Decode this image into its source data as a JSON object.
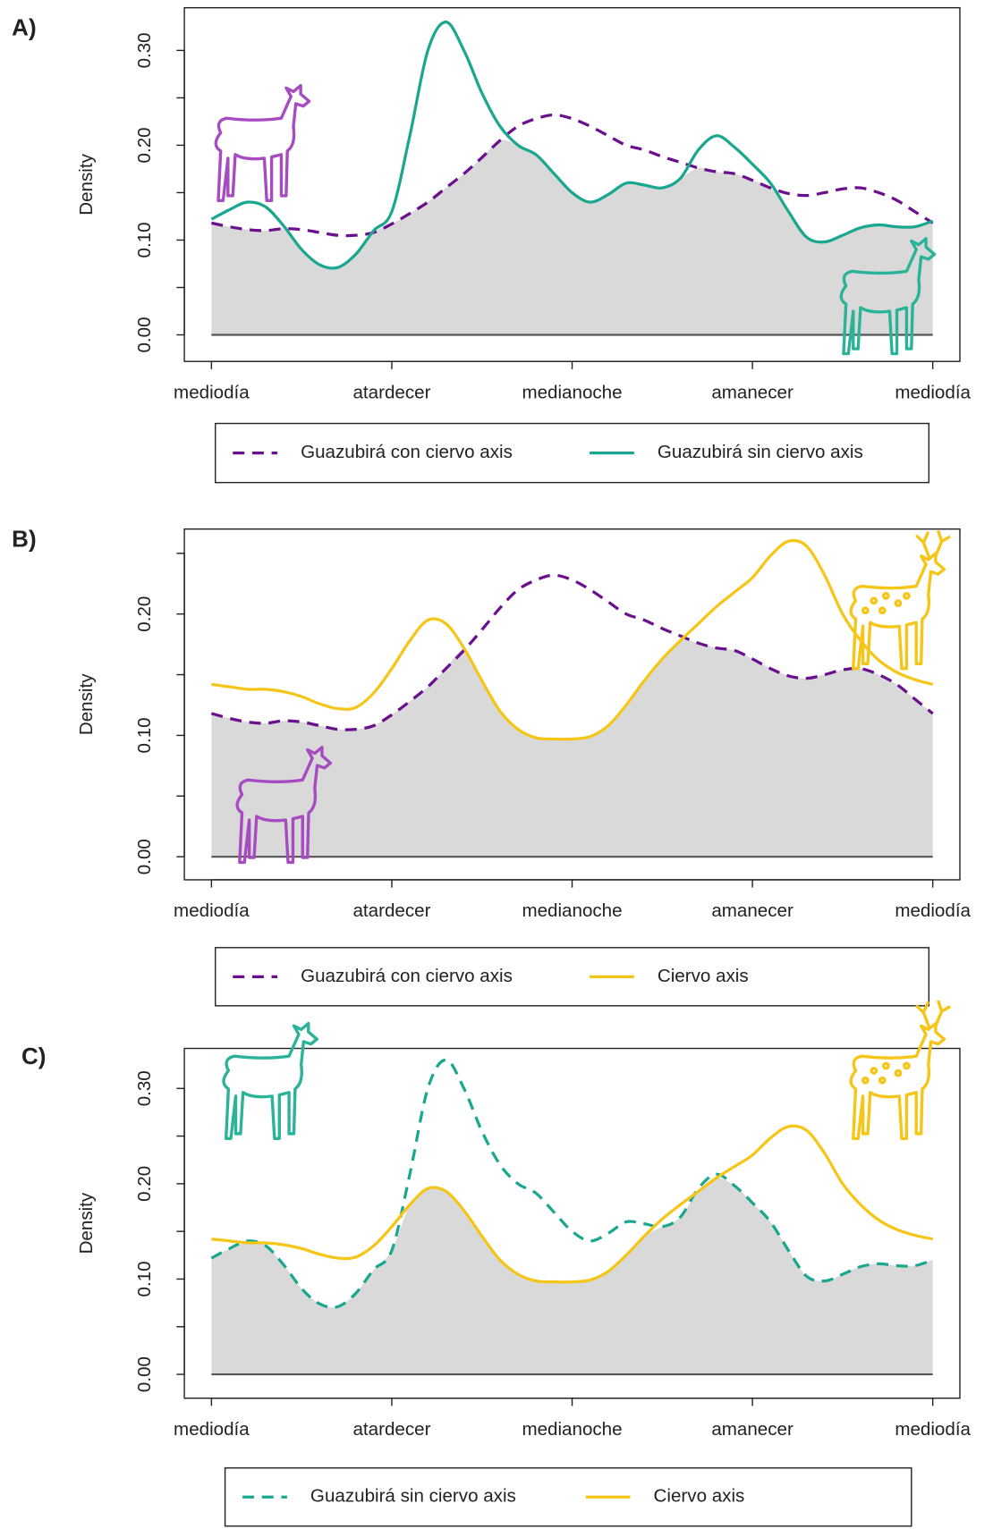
{
  "chart_data": [
    {
      "type": "line",
      "label": "A)",
      "ylabel": "Density",
      "x": [
        0,
        0.025,
        0.05,
        0.075,
        0.1,
        0.125,
        0.15,
        0.175,
        0.2,
        0.225,
        0.25,
        0.275,
        0.3,
        0.325,
        0.35,
        0.375,
        0.4,
        0.425,
        0.45,
        0.475,
        0.5,
        0.525,
        0.55,
        0.575,
        0.6,
        0.625,
        0.65,
        0.675,
        0.7,
        0.725,
        0.75,
        0.775,
        0.8,
        0.825,
        0.85,
        0.875,
        0.9,
        0.925,
        0.95,
        0.975,
        1
      ],
      "xlim": [
        -0.0376,
        1.0376
      ],
      "xticks": [
        {
          "value": 0,
          "label": "mediodía"
        },
        {
          "value": 0.25,
          "label": "atardecer"
        },
        {
          "value": 0.5,
          "label": "medianoche"
        },
        {
          "value": 0.75,
          "label": "amanecer"
        },
        {
          "value": 1,
          "label": "mediodía"
        }
      ],
      "ylim": [
        -0.028,
        0.345
      ],
      "yticks": [
        {
          "value": 0,
          "label": "0.00"
        },
        {
          "value": 0.1,
          "label": "0.10"
        },
        {
          "value": 0.2,
          "label": "0.20"
        },
        {
          "value": 0.3,
          "label": "0.30"
        }
      ],
      "yminorticks": [
        0.05,
        0.15,
        0.25
      ],
      "series": [
        {
          "name": "Guazubirá con ciervo axis",
          "color": "#6a0f8e",
          "dashed": true,
          "values": [
            0.118,
            0.114,
            0.111,
            0.11,
            0.112,
            0.111,
            0.108,
            0.105,
            0.105,
            0.108,
            0.117,
            0.128,
            0.14,
            0.155,
            0.17,
            0.187,
            0.205,
            0.22,
            0.228,
            0.232,
            0.228,
            0.22,
            0.21,
            0.2,
            0.195,
            0.188,
            0.182,
            0.176,
            0.172,
            0.17,
            0.163,
            0.155,
            0.149,
            0.147,
            0.15,
            0.154,
            0.155,
            0.15,
            0.142,
            0.13,
            0.118
          ]
        },
        {
          "name": "Guazubirá sin ciervo axis",
          "color": "#1aa78f",
          "dashed": false,
          "values": [
            0.122,
            0.132,
            0.14,
            0.135,
            0.115,
            0.09,
            0.074,
            0.071,
            0.085,
            0.11,
            0.13,
            0.21,
            0.3,
            0.33,
            0.3,
            0.255,
            0.22,
            0.2,
            0.19,
            0.17,
            0.15,
            0.14,
            0.148,
            0.16,
            0.158,
            0.155,
            0.165,
            0.195,
            0.21,
            0.198,
            0.18,
            0.16,
            0.13,
            0.103,
            0.098,
            0.105,
            0.113,
            0.116,
            0.114,
            0.114,
            0.12
          ]
        }
      ]
    },
    {
      "type": "line",
      "label": "B)",
      "ylabel": "Density",
      "x": [
        0,
        0.025,
        0.05,
        0.075,
        0.1,
        0.125,
        0.15,
        0.175,
        0.2,
        0.225,
        0.25,
        0.275,
        0.3,
        0.325,
        0.35,
        0.375,
        0.4,
        0.425,
        0.45,
        0.475,
        0.5,
        0.525,
        0.55,
        0.575,
        0.6,
        0.625,
        0.65,
        0.675,
        0.7,
        0.725,
        0.75,
        0.775,
        0.8,
        0.825,
        0.85,
        0.875,
        0.9,
        0.925,
        0.95,
        0.975,
        1
      ],
      "xlim": [
        -0.0376,
        1.0376
      ],
      "xticks": [
        {
          "value": 0,
          "label": "mediodía"
        },
        {
          "value": 0.25,
          "label": "atardecer"
        },
        {
          "value": 0.5,
          "label": "medianoche"
        },
        {
          "value": 0.75,
          "label": "amanecer"
        },
        {
          "value": 1,
          "label": "mediodía"
        }
      ],
      "ylim": [
        -0.019,
        0.27
      ],
      "yticks": [
        {
          "value": 0,
          "label": "0.00"
        },
        {
          "value": 0.1,
          "label": "0.10"
        },
        {
          "value": 0.2,
          "label": "0.20"
        }
      ],
      "yminorticks": [
        0.05,
        0.15,
        0.25
      ],
      "series": [
        {
          "name": "Guazubirá con ciervo axis",
          "color": "#6a0f8e",
          "dashed": true,
          "values": [
            0.118,
            0.114,
            0.111,
            0.11,
            0.112,
            0.111,
            0.108,
            0.105,
            0.105,
            0.108,
            0.117,
            0.128,
            0.14,
            0.155,
            0.17,
            0.187,
            0.205,
            0.22,
            0.228,
            0.232,
            0.228,
            0.22,
            0.21,
            0.2,
            0.195,
            0.188,
            0.182,
            0.176,
            0.172,
            0.17,
            0.163,
            0.155,
            0.149,
            0.147,
            0.15,
            0.154,
            0.155,
            0.15,
            0.142,
            0.13,
            0.118
          ]
        },
        {
          "name": "Ciervo axis",
          "color": "#f5c518",
          "dashed": false,
          "values": [
            0.142,
            0.14,
            0.138,
            0.138,
            0.136,
            0.132,
            0.126,
            0.122,
            0.123,
            0.135,
            0.155,
            0.178,
            0.195,
            0.192,
            0.172,
            0.145,
            0.12,
            0.105,
            0.098,
            0.097,
            0.097,
            0.099,
            0.108,
            0.125,
            0.145,
            0.163,
            0.178,
            0.192,
            0.206,
            0.218,
            0.23,
            0.248,
            0.26,
            0.256,
            0.232,
            0.2,
            0.178,
            0.162,
            0.152,
            0.146,
            0.142
          ]
        }
      ]
    },
    {
      "type": "line",
      "label": "C)",
      "ylabel": "Density",
      "x": [
        0,
        0.025,
        0.05,
        0.075,
        0.1,
        0.125,
        0.15,
        0.175,
        0.2,
        0.225,
        0.25,
        0.275,
        0.3,
        0.325,
        0.35,
        0.375,
        0.4,
        0.425,
        0.45,
        0.475,
        0.5,
        0.525,
        0.55,
        0.575,
        0.6,
        0.625,
        0.65,
        0.675,
        0.7,
        0.725,
        0.75,
        0.775,
        0.8,
        0.825,
        0.85,
        0.875,
        0.9,
        0.925,
        0.95,
        0.975,
        1
      ],
      "xlim": [
        -0.0376,
        1.0376
      ],
      "xticks": [
        {
          "value": 0,
          "label": "mediodía"
        },
        {
          "value": 0.25,
          "label": "atardecer"
        },
        {
          "value": 0.5,
          "label": "medianoche"
        },
        {
          "value": 0.75,
          "label": "amanecer"
        },
        {
          "value": 1,
          "label": "mediodía"
        }
      ],
      "ylim": [
        -0.025,
        0.342
      ],
      "yticks": [
        {
          "value": 0,
          "label": "0.00"
        },
        {
          "value": 0.1,
          "label": "0.10"
        },
        {
          "value": 0.2,
          "label": "0.20"
        },
        {
          "value": 0.3,
          "label": "0.30"
        }
      ],
      "yminorticks": [
        0.05,
        0.15,
        0.25
      ],
      "series": [
        {
          "name": "Guazubirá sin ciervo axis",
          "color": "#1aa78f",
          "dashed": true,
          "values": [
            0.122,
            0.132,
            0.14,
            0.135,
            0.115,
            0.09,
            0.074,
            0.071,
            0.085,
            0.11,
            0.13,
            0.21,
            0.3,
            0.33,
            0.3,
            0.255,
            0.22,
            0.2,
            0.19,
            0.17,
            0.15,
            0.14,
            0.148,
            0.16,
            0.158,
            0.155,
            0.165,
            0.195,
            0.21,
            0.198,
            0.18,
            0.16,
            0.13,
            0.103,
            0.098,
            0.105,
            0.113,
            0.116,
            0.114,
            0.114,
            0.12
          ]
        },
        {
          "name": "Ciervo axis",
          "color": "#f5c518",
          "dashed": false,
          "values": [
            0.142,
            0.14,
            0.138,
            0.138,
            0.136,
            0.132,
            0.126,
            0.122,
            0.123,
            0.135,
            0.155,
            0.178,
            0.195,
            0.192,
            0.172,
            0.145,
            0.12,
            0.105,
            0.098,
            0.097,
            0.097,
            0.099,
            0.108,
            0.125,
            0.145,
            0.163,
            0.178,
            0.192,
            0.206,
            0.218,
            0.23,
            0.248,
            0.26,
            0.256,
            0.232,
            0.2,
            0.178,
            0.162,
            0.152,
            0.146,
            0.142
          ]
        }
      ]
    }
  ]
}
